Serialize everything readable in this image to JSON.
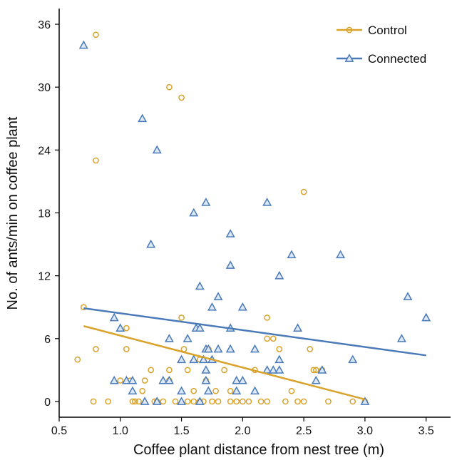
{
  "chart_data": {
    "type": "scatter",
    "title": "",
    "xlabel": "Coffee plant distance from nest tree (m)",
    "ylabel": "No. of ants/min on coffee plant",
    "xlim": [
      0.5,
      3.7
    ],
    "ylim": [
      -1.5,
      37.5
    ],
    "x_ticks": [
      0.5,
      1.0,
      1.5,
      2.0,
      2.5,
      3.0,
      3.5
    ],
    "x_tick_labels": [
      "0.5",
      "1.0",
      "1.5",
      "2.0",
      "2.5",
      "3.0",
      "3.5"
    ],
    "y_ticks": [
      0,
      6,
      12,
      18,
      24,
      30,
      36
    ],
    "y_tick_labels": [
      "0",
      "6",
      "12",
      "18",
      "24",
      "30",
      "36"
    ],
    "grid": false,
    "legend_position": "top-right",
    "series": [
      {
        "name": "Control",
        "color": "#D9A22B",
        "marker": "circle",
        "points": [
          [
            0.65,
            4
          ],
          [
            0.7,
            9
          ],
          [
            0.78,
            0
          ],
          [
            0.8,
            5
          ],
          [
            0.8,
            35
          ],
          [
            0.8,
            23
          ],
          [
            0.9,
            0
          ],
          [
            1.0,
            2
          ],
          [
            1.05,
            7
          ],
          [
            1.05,
            5
          ],
          [
            1.08,
            2
          ],
          [
            1.1,
            0
          ],
          [
            1.12,
            0
          ],
          [
            1.15,
            0
          ],
          [
            1.18,
            1
          ],
          [
            1.2,
            2
          ],
          [
            1.25,
            3
          ],
          [
            1.28,
            0
          ],
          [
            1.3,
            0
          ],
          [
            1.35,
            0
          ],
          [
            1.4,
            30
          ],
          [
            1.4,
            3
          ],
          [
            1.4,
            2
          ],
          [
            1.45,
            0
          ],
          [
            1.5,
            29
          ],
          [
            1.5,
            8
          ],
          [
            1.52,
            5
          ],
          [
            1.55,
            3
          ],
          [
            1.55,
            0
          ],
          [
            1.6,
            0
          ],
          [
            1.6,
            1
          ],
          [
            1.65,
            4
          ],
          [
            1.65,
            0
          ],
          [
            1.68,
            0
          ],
          [
            1.7,
            2
          ],
          [
            1.72,
            5
          ],
          [
            1.75,
            0
          ],
          [
            1.78,
            1
          ],
          [
            1.8,
            0
          ],
          [
            1.85,
            3
          ],
          [
            1.9,
            1
          ],
          [
            1.9,
            0
          ],
          [
            1.95,
            0
          ],
          [
            2.0,
            0
          ],
          [
            2.05,
            0
          ],
          [
            2.1,
            3
          ],
          [
            2.15,
            0
          ],
          [
            2.2,
            6
          ],
          [
            2.2,
            8
          ],
          [
            2.2,
            0
          ],
          [
            2.25,
            6
          ],
          [
            2.3,
            5
          ],
          [
            2.35,
            0
          ],
          [
            2.4,
            1
          ],
          [
            2.45,
            0
          ],
          [
            2.5,
            20
          ],
          [
            2.5,
            0
          ],
          [
            2.55,
            5
          ],
          [
            2.58,
            3
          ],
          [
            2.6,
            3
          ],
          [
            2.65,
            3
          ],
          [
            2.7,
            0
          ],
          [
            2.9,
            0
          ],
          [
            3.0,
            0
          ]
        ],
        "trend": [
          [
            0.7,
            7.2
          ],
          [
            3.0,
            0.2
          ]
        ]
      },
      {
        "name": "Connected",
        "color": "#4A7AB8",
        "marker": "triangle",
        "points": [
          [
            0.7,
            34
          ],
          [
            0.95,
            8
          ],
          [
            0.95,
            2
          ],
          [
            1.0,
            7
          ],
          [
            1.05,
            2
          ],
          [
            1.1,
            2
          ],
          [
            1.1,
            1
          ],
          [
            1.18,
            27
          ],
          [
            1.2,
            0
          ],
          [
            1.25,
            15
          ],
          [
            1.3,
            24
          ],
          [
            1.3,
            0
          ],
          [
            1.35,
            2
          ],
          [
            1.4,
            6
          ],
          [
            1.4,
            2
          ],
          [
            1.5,
            4
          ],
          [
            1.5,
            1
          ],
          [
            1.5,
            0
          ],
          [
            1.55,
            6
          ],
          [
            1.6,
            18
          ],
          [
            1.6,
            4
          ],
          [
            1.62,
            7
          ],
          [
            1.65,
            11
          ],
          [
            1.65,
            7
          ],
          [
            1.65,
            0
          ],
          [
            1.68,
            4
          ],
          [
            1.7,
            19
          ],
          [
            1.7,
            5
          ],
          [
            1.7,
            3
          ],
          [
            1.7,
            2
          ],
          [
            1.72,
            1
          ],
          [
            1.72,
            5
          ],
          [
            1.75,
            4
          ],
          [
            1.75,
            9
          ],
          [
            1.8,
            10
          ],
          [
            1.8,
            5
          ],
          [
            1.9,
            16
          ],
          [
            1.9,
            13
          ],
          [
            1.9,
            7
          ],
          [
            1.9,
            5
          ],
          [
            1.95,
            2
          ],
          [
            1.95,
            1
          ],
          [
            2.0,
            9
          ],
          [
            2.0,
            2
          ],
          [
            2.1,
            5
          ],
          [
            2.1,
            1
          ],
          [
            2.2,
            19
          ],
          [
            2.2,
            3
          ],
          [
            2.25,
            3
          ],
          [
            2.3,
            12
          ],
          [
            2.3,
            4
          ],
          [
            2.3,
            3
          ],
          [
            2.4,
            14
          ],
          [
            2.45,
            7
          ],
          [
            2.6,
            2
          ],
          [
            2.65,
            3
          ],
          [
            2.8,
            14
          ],
          [
            2.9,
            4
          ],
          [
            3.0,
            0
          ],
          [
            3.3,
            6
          ],
          [
            3.35,
            10
          ],
          [
            3.5,
            8
          ]
        ],
        "trend": [
          [
            0.7,
            8.9
          ],
          [
            3.5,
            4.4
          ]
        ]
      }
    ]
  }
}
